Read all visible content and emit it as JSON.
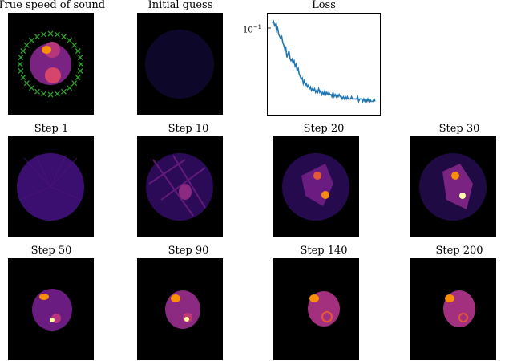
{
  "panels": [
    {
      "key": "true",
      "title": "True speed of sound"
    },
    {
      "key": "initial",
      "title": "Initial guess"
    },
    {
      "key": "loss",
      "title": "Loss"
    },
    {
      "key": "s1",
      "title": "Step 1"
    },
    {
      "key": "s10",
      "title": "Step 10"
    },
    {
      "key": "s20",
      "title": "Step 20"
    },
    {
      "key": "s30",
      "title": "Step 30"
    },
    {
      "key": "s50",
      "title": "Step 50"
    },
    {
      "key": "s90",
      "title": "Step 90"
    },
    {
      "key": "s140",
      "title": "Step 140"
    },
    {
      "key": "s200",
      "title": "Step 200"
    }
  ],
  "colors": {
    "background": "#000000",
    "sensor": "#2ca02c",
    "initial_disk": "#0d0829",
    "step1_disk": "#3b0f70",
    "loss_line": "#1f77b4",
    "hot": "#fcffa4",
    "orange": "#f98e09",
    "magenta": "#b5367a",
    "purple": "#51127c"
  },
  "chart_data": {
    "type": "line",
    "title": "Loss",
    "xlabel": "",
    "ylabel": "",
    "y_scale": "log",
    "y_tick_label": "10^{-1}",
    "ylim": [
      0.012,
      0.14
    ],
    "xlim": [
      0,
      200
    ],
    "series": [
      {
        "values": [
          0.118,
          0.124,
          0.111,
          0.115,
          0.097,
          0.104,
          0.088,
          0.083,
          0.079,
          0.083,
          0.071,
          0.066,
          0.059,
          0.062,
          0.048,
          0.052,
          0.057,
          0.047,
          0.044,
          0.046,
          0.041,
          0.044,
          0.038,
          0.04,
          0.034,
          0.036,
          0.031,
          0.029,
          0.027,
          0.028,
          0.024,
          0.026,
          0.023,
          0.024,
          0.022,
          0.023,
          0.021,
          0.022,
          0.02,
          0.021,
          0.02,
          0.021,
          0.019,
          0.02,
          0.019,
          0.021,
          0.019,
          0.02,
          0.018,
          0.019,
          0.018,
          0.02,
          0.018,
          0.019,
          0.018,
          0.019,
          0.018,
          0.018,
          0.017,
          0.019,
          0.017,
          0.018,
          0.017,
          0.018,
          0.017,
          0.018,
          0.017,
          0.017,
          0.016,
          0.017,
          0.016,
          0.017,
          0.016,
          0.017,
          0.016,
          0.016,
          0.016,
          0.017,
          0.016,
          0.016,
          0.016,
          0.016,
          0.016,
          0.017,
          0.015,
          0.016,
          0.016,
          0.016,
          0.015,
          0.016,
          0.015,
          0.016,
          0.015,
          0.016,
          0.015,
          0.016,
          0.015,
          0.015,
          0.015,
          0.016,
          0.015
        ]
      }
    ]
  }
}
